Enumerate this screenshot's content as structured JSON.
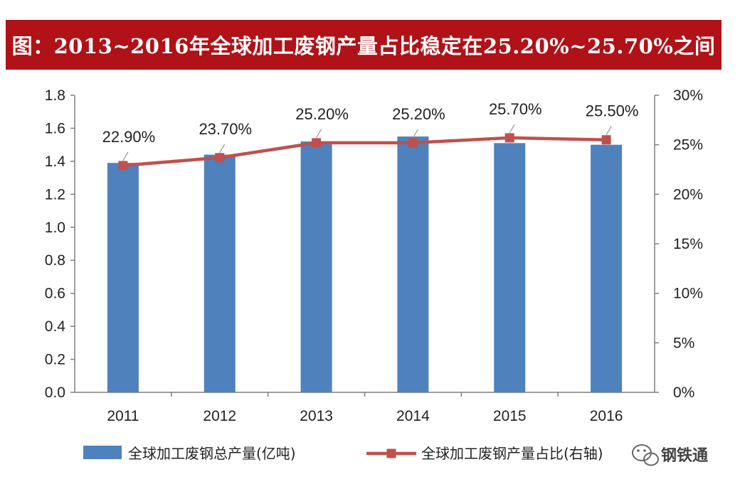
{
  "title": "图：2013~2016年全球加工废钢产量占比稳定在25.20%~25.70%之间",
  "watermark": "钢铁通",
  "chart_data": {
    "type": "bar",
    "categories": [
      "2011",
      "2012",
      "2013",
      "2014",
      "2015",
      "2016"
    ],
    "series": [
      {
        "name": "全球加工废钢总产量(亿吨)",
        "type": "bar",
        "axis": "left",
        "color": "#4f81bd",
        "values": [
          1.39,
          1.44,
          1.52,
          1.55,
          1.51,
          1.5
        ]
      },
      {
        "name": "全球加工废钢产量占比(右轴)",
        "type": "line",
        "axis": "right",
        "color": "#c0504d",
        "values": [
          22.9,
          23.7,
          25.2,
          25.2,
          25.7,
          25.5
        ],
        "data_labels": [
          "22.90%",
          "23.70%",
          "25.20%",
          "25.20%",
          "25.70%",
          "25.50%"
        ]
      }
    ],
    "y_left": {
      "ylim": [
        0,
        1.8
      ],
      "ticks": [
        "0.0",
        "0.2",
        "0.4",
        "0.6",
        "0.8",
        "1.0",
        "1.2",
        "1.4",
        "1.6",
        "1.8"
      ]
    },
    "y_right": {
      "ylim": [
        0,
        30
      ],
      "ticks": [
        "0%",
        "5%",
        "10%",
        "15%",
        "20%",
        "25%",
        "30%"
      ]
    },
    "legend_placement": "bottom",
    "grid": false
  }
}
